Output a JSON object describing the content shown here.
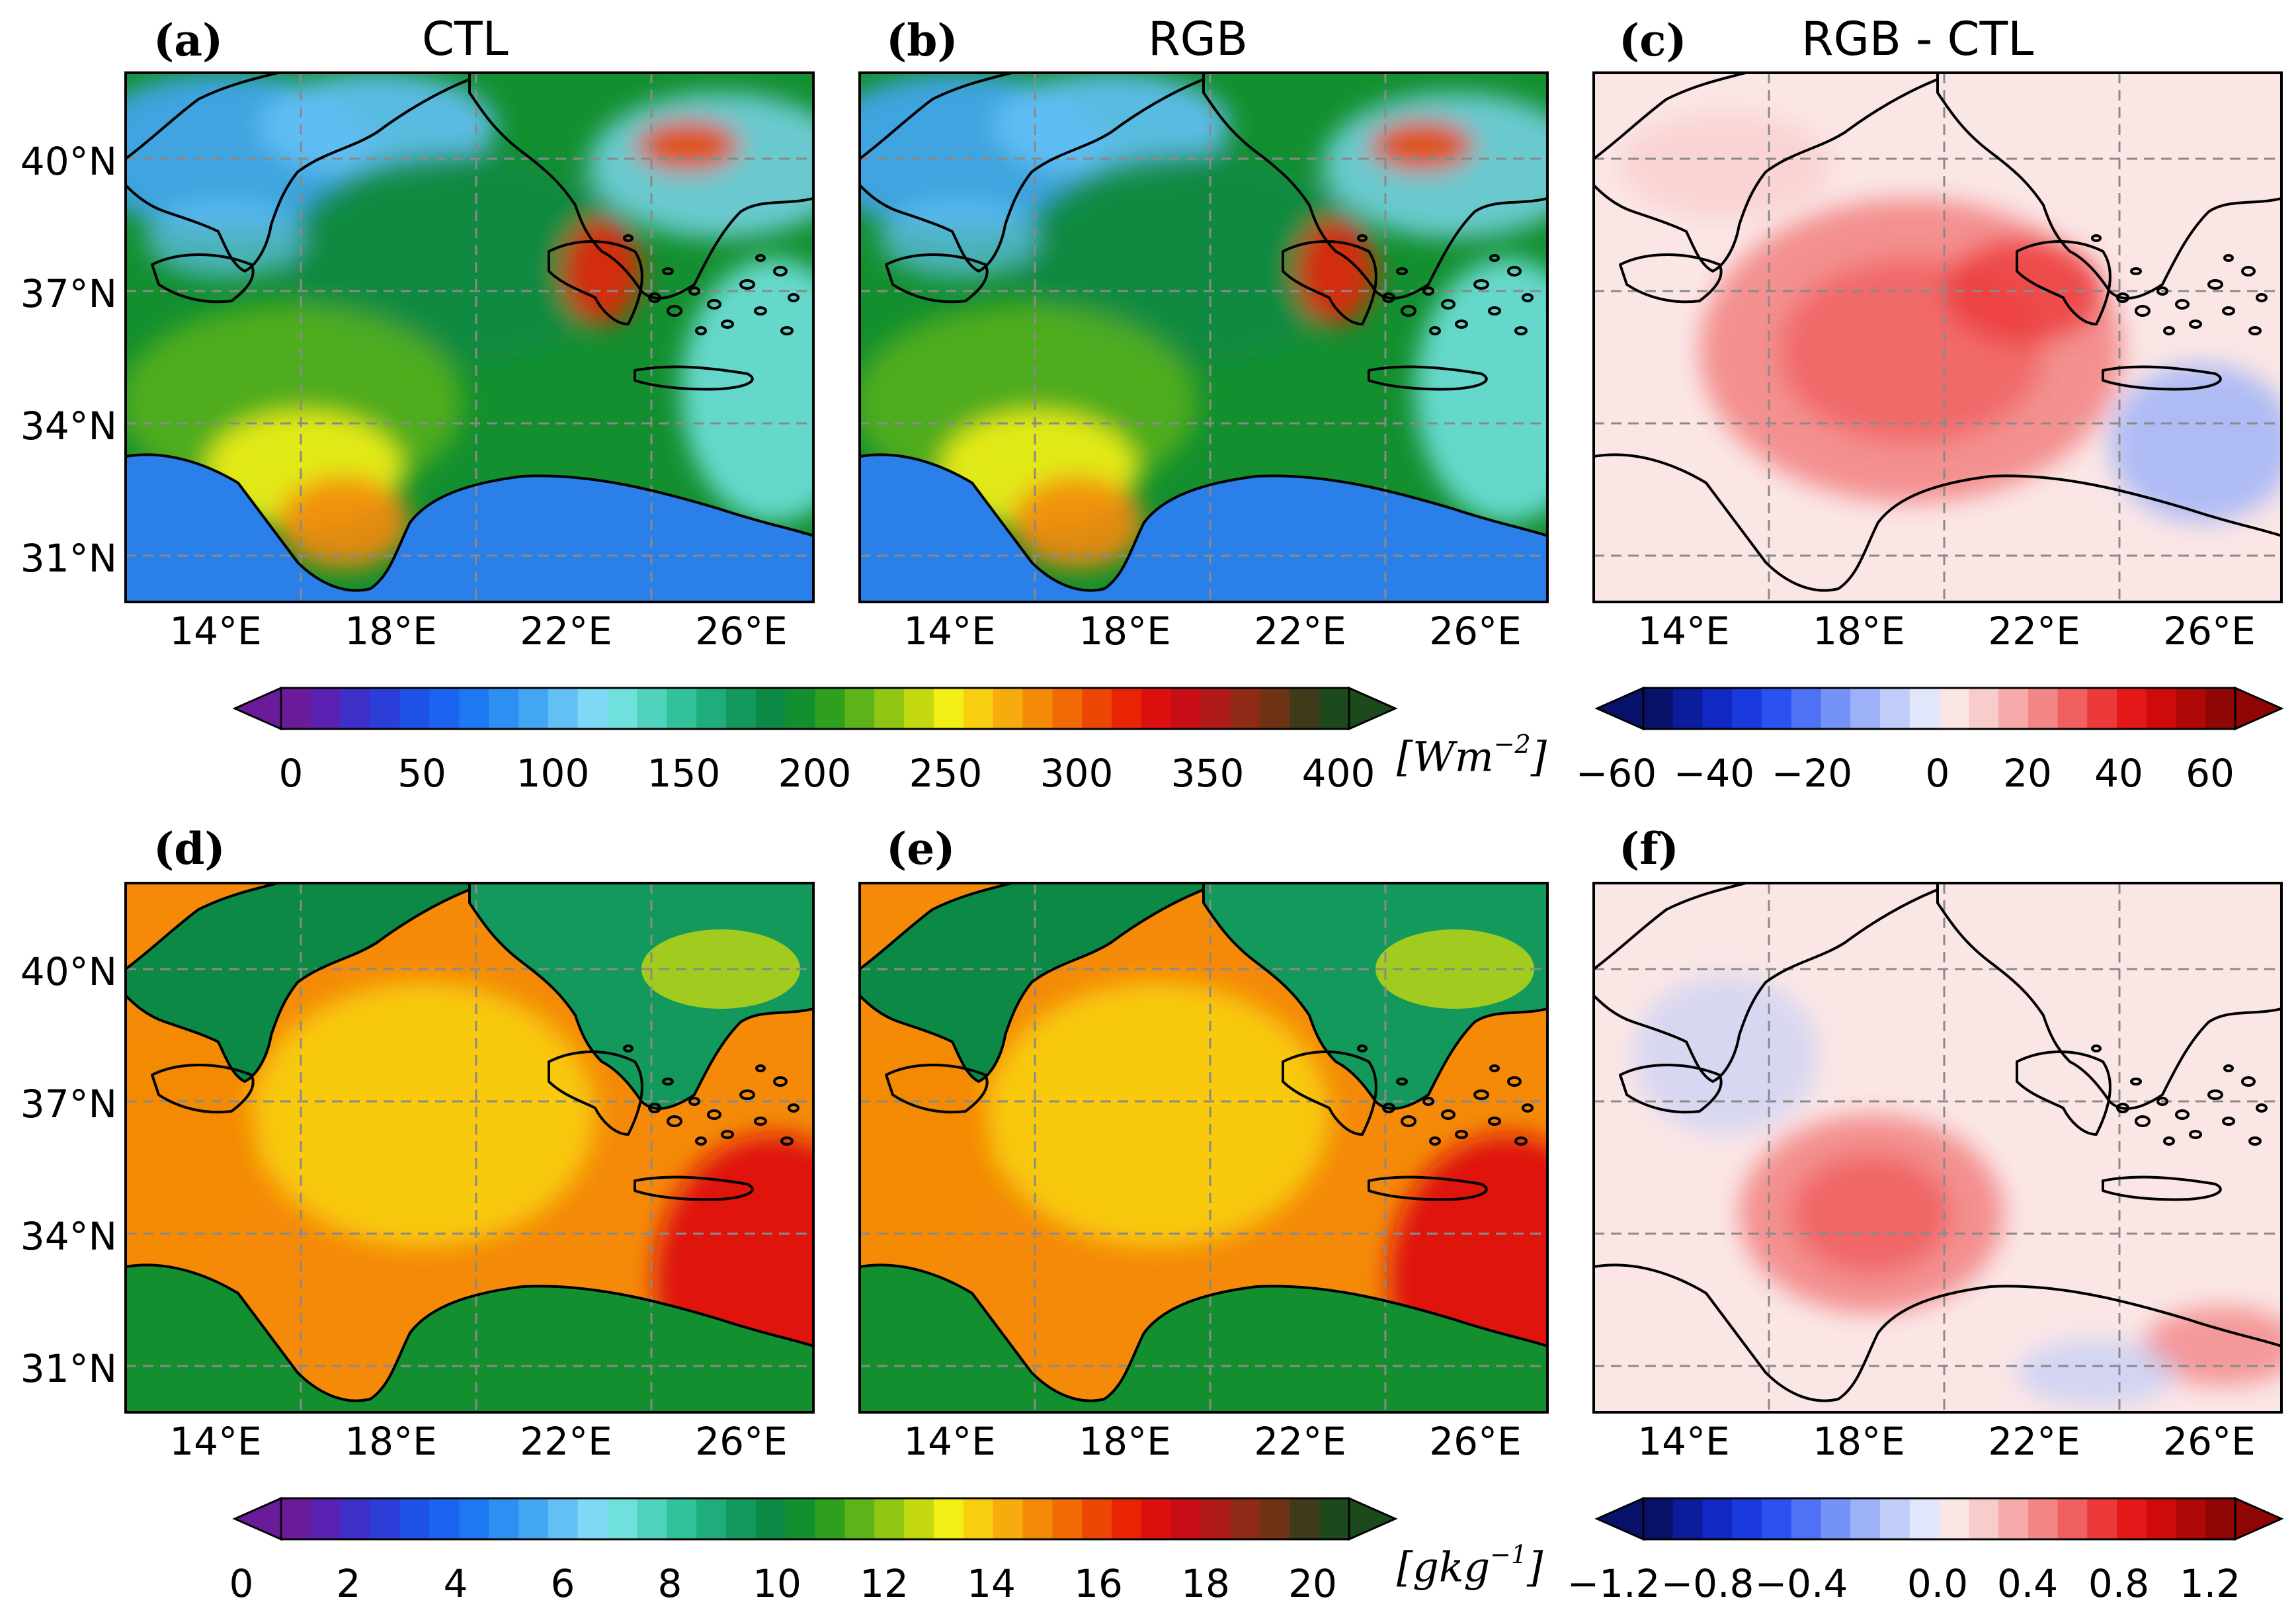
{
  "panels": [
    {
      "id": "a",
      "label": "(a)",
      "title": "CTL"
    },
    {
      "id": "b",
      "label": "(b)",
      "title": "RGB"
    },
    {
      "id": "c",
      "label": "(c)",
      "title": "RGB - CTL"
    },
    {
      "id": "d",
      "label": "(d)",
      "title": ""
    },
    {
      "id": "e",
      "label": "(e)",
      "title": ""
    },
    {
      "id": "f",
      "label": "(f)",
      "title": ""
    }
  ],
  "axes": {
    "lat_ticks": [
      "40°N",
      "37°N",
      "34°N",
      "31°N"
    ],
    "lon_ticks": [
      "14°E",
      "18°E",
      "22°E",
      "26°E"
    ]
  },
  "colorbars": {
    "top_main": {
      "ticks": [
        "0",
        "50",
        "100",
        "150",
        "200",
        "250",
        "300",
        "350",
        "400"
      ],
      "unit_base": "[Wm",
      "unit_sup": "−2",
      "unit_end": "]"
    },
    "top_diff": {
      "ticks": [
        "−60",
        "−40",
        "−20",
        "0",
        "20",
        "40",
        "60"
      ]
    },
    "bottom_main": {
      "ticks": [
        "0",
        "2",
        "4",
        "6",
        "8",
        "10",
        "12",
        "14",
        "16",
        "18",
        "20"
      ],
      "unit_base": "[gkg",
      "unit_sup": "−1",
      "unit_end": "]"
    },
    "bottom_diff": {
      "ticks": [
        "−1.2",
        "−0.8",
        "−0.4",
        "0.0",
        "0.4",
        "0.8",
        "1.2"
      ]
    }
  },
  "colors": {
    "main_scale": [
      "#6a1b9a",
      "#5a21b3",
      "#3f2fc9",
      "#2b3fd8",
      "#1e52e6",
      "#1c63ef",
      "#1e78f2",
      "#2d8ff2",
      "#42a6f2",
      "#62c0f4",
      "#7ed8f6",
      "#6fe0dc",
      "#4fd3bd",
      "#31c29a",
      "#1fae7b",
      "#14995d",
      "#0c8a45",
      "#138f2f",
      "#2f9f1e",
      "#5cb31a",
      "#8fc614",
      "#c4d810",
      "#f2ef14",
      "#f8cf10",
      "#f6ac0c",
      "#f48a08",
      "#f06a06",
      "#ec4604",
      "#e82404",
      "#dd0f0f",
      "#c70d16",
      "#ad1a18",
      "#8f2a16",
      "#6e3314",
      "#3e3a1a",
      "#1d4a1d"
    ],
    "diff_scale": [
      "#08126b",
      "#0b1d9a",
      "#1128c2",
      "#1a3ae0",
      "#2b52f0",
      "#4f72f5",
      "#7592f6",
      "#9cb1f7",
      "#c0cdf8",
      "#e2e6fb",
      "#fbe6e6",
      "#f9cccc",
      "#f6aaaa",
      "#f38686",
      "#f06060",
      "#ec3a3a",
      "#e41818",
      "#cf0a0a",
      "#b00707",
      "#900606"
    ],
    "sea_rad": "#2a7fe8",
    "coast": "#000000",
    "grid": "#8a8a8a"
  }
}
